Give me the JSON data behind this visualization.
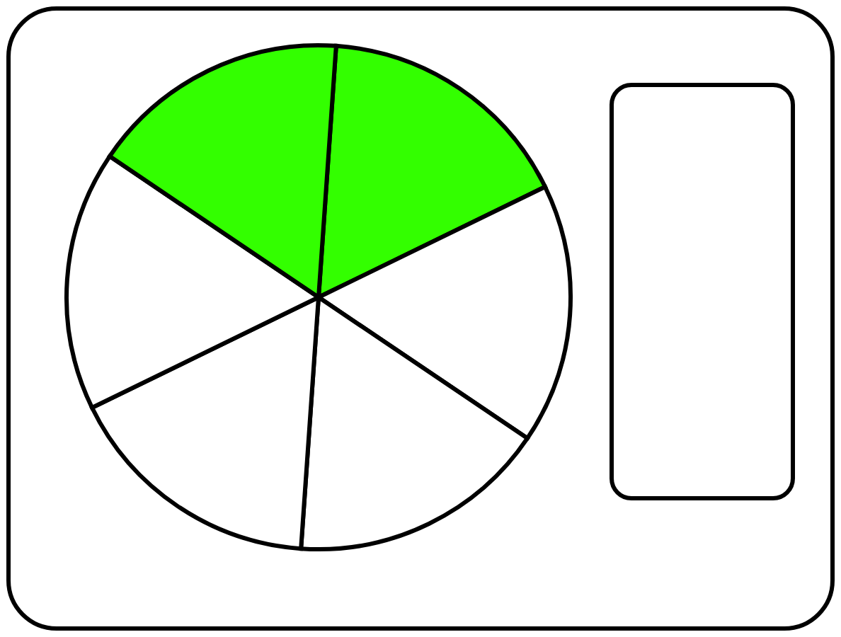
{
  "chart_data": {
    "type": "pie",
    "categories": [
      null,
      null,
      null,
      null,
      null,
      null
    ],
    "values": [
      16.67,
      16.67,
      16.66,
      16.67,
      16.67,
      16.66
    ],
    "colors": [
      "#33ff00",
      "#ffffff",
      "#ffffff",
      "#ffffff",
      "#ffffff",
      "#33ff00"
    ]
  }
}
